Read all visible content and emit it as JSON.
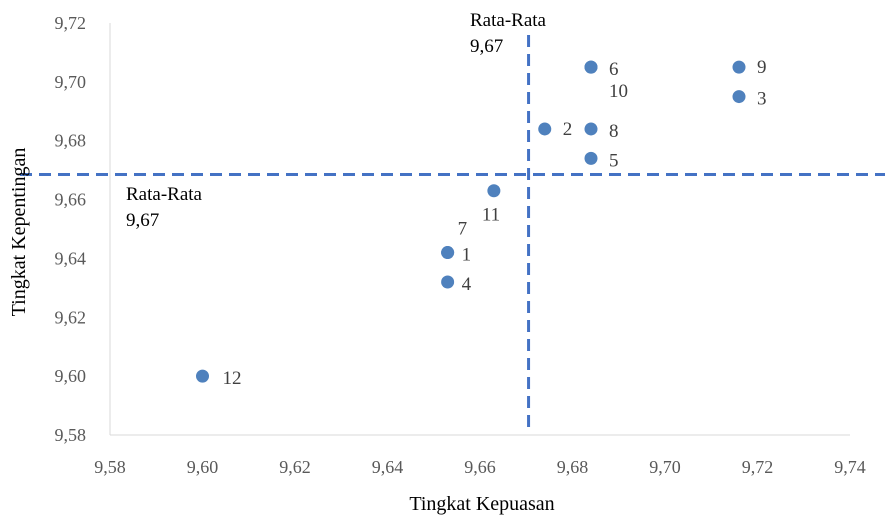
{
  "chart_data": {
    "type": "scatter",
    "title": "",
    "xlabel": "Tingkat Kepuasan",
    "ylabel": "Tingkat Kepentingan",
    "xlim": [
      9.58,
      9.74
    ],
    "ylim": [
      9.58,
      9.72
    ],
    "x_ticks": [
      "9,58",
      "9,60",
      "9,62",
      "9,64",
      "9,66",
      "9,68",
      "9,70",
      "9,72",
      "9,74"
    ],
    "y_ticks": [
      "9,58",
      "9,60",
      "9,62",
      "9,64",
      "9,66",
      "9,68",
      "9,70",
      "9,72"
    ],
    "grid": false,
    "legend": "none",
    "marker_color": "#4f81bd",
    "line_color": "#4472c4",
    "points": [
      {
        "label": "1",
        "x": 9.653,
        "y": 9.642
      },
      {
        "label": "2",
        "x": 9.674,
        "y": 9.684
      },
      {
        "label": "3",
        "x": 9.716,
        "y": 9.695
      },
      {
        "label": "4",
        "x": 9.653,
        "y": 9.632
      },
      {
        "label": "5",
        "x": 9.684,
        "y": 9.674
      },
      {
        "label": "6",
        "x": 9.684,
        "y": 9.705
      },
      {
        "label": "7",
        "x": 9.653,
        "y": 9.642
      },
      {
        "label": "8",
        "x": 9.684,
        "y": 9.684
      },
      {
        "label": "9",
        "x": 9.716,
        "y": 9.705
      },
      {
        "label": "10",
        "x": 9.684,
        "y": 9.705
      },
      {
        "label": "11",
        "x": 9.663,
        "y": 9.663
      },
      {
        "label": "12",
        "x": 9.6,
        "y": 9.6
      }
    ],
    "reference_lines": {
      "vertical": {
        "label": "Rata-Rata",
        "value_text": "9,67",
        "x": 9.6705
      },
      "horizontal": {
        "label": "Rata-Rata",
        "value_text": "9,67",
        "y": 9.6685
      }
    }
  }
}
